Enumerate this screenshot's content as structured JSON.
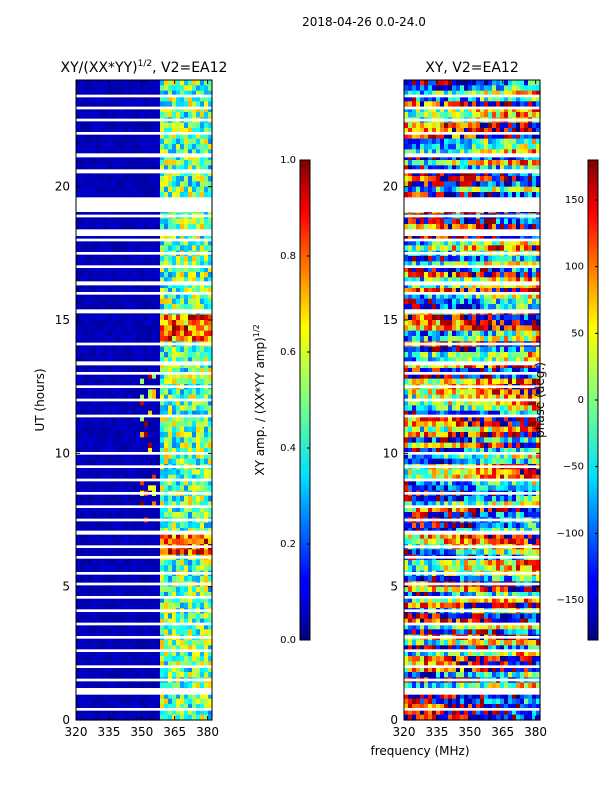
{
  "suptitle": "2018-04-26 0.0-24.0",
  "shared_xlabel": "frequency (MHz)",
  "chart_data": [
    {
      "type": "heatmap",
      "title": "XY/(XX*YY)^(1/2), V2=EA12",
      "title_main": "XY/(XX*YY)",
      "title_sup": "1/2",
      "title_tail": ", V2=EA12",
      "xlabel": "frequency (MHz)",
      "ylabel": "UT (hours)",
      "x_ticks": [
        320,
        335,
        350,
        365,
        380
      ],
      "xlim": [
        320,
        382
      ],
      "y_ticks": [
        0,
        5,
        10,
        15,
        20
      ],
      "ylim": [
        0,
        24
      ],
      "colorbar": {
        "label_main": "XY amp. / (XX*YY amp)",
        "label_sup": "1/2",
        "ticks": [
          0.0,
          0.2,
          0.4,
          0.6,
          0.8,
          1.0
        ],
        "tick_labels": [
          "0.0",
          "0.2",
          "0.4",
          "0.6",
          "0.8",
          "1.0"
        ],
        "range": [
          0,
          1
        ],
        "colormap": "jet"
      }
    },
    {
      "type": "heatmap",
      "title": "XY, V2=EA12",
      "xlabel": "frequency (MHz)",
      "ylabel": "",
      "x_ticks": [
        320,
        335,
        350,
        365,
        380
      ],
      "xlim": [
        320,
        382
      ],
      "y_ticks": [
        0,
        5,
        10,
        15,
        20
      ],
      "ylim": [
        0,
        24
      ],
      "colorbar": {
        "label": "phase (deg.)",
        "ticks": [
          -150,
          -100,
          -50,
          0,
          50,
          100,
          150
        ],
        "tick_labels": [
          "−150",
          "−100",
          "−50",
          "0",
          "50",
          "100",
          "150"
        ],
        "range": [
          -180,
          180
        ],
        "colormap": "jet"
      }
    }
  ],
  "data_gaps_hours": [
    [
      0.35,
      0.45
    ],
    [
      0.95,
      1.2
    ],
    [
      1.45,
      1.55
    ],
    [
      1.95,
      2.05
    ],
    [
      2.55,
      2.65
    ],
    [
      3.05,
      3.15
    ],
    [
      3.55,
      3.65
    ],
    [
      4.05,
      4.15
    ],
    [
      4.55,
      4.65
    ],
    [
      5.05,
      5.15
    ],
    [
      5.45,
      5.55
    ],
    [
      6.05,
      6.15
    ],
    [
      6.45,
      6.55
    ],
    [
      6.95,
      7.1
    ],
    [
      7.45,
      7.55
    ],
    [
      7.95,
      8.05
    ],
    [
      8.45,
      8.55
    ],
    [
      8.95,
      9.05
    ],
    [
      9.45,
      9.55
    ],
    [
      9.95,
      10.05
    ],
    [
      11.35,
      11.45
    ],
    [
      11.95,
      12.05
    ],
    [
      12.45,
      12.55
    ],
    [
      12.95,
      13.05
    ],
    [
      13.3,
      13.45
    ],
    [
      14.05,
      14.15
    ],
    [
      15.25,
      15.4
    ],
    [
      15.95,
      16.05
    ],
    [
      16.3,
      16.45
    ],
    [
      16.95,
      17.05
    ],
    [
      17.45,
      17.55
    ],
    [
      17.95,
      18.05
    ],
    [
      18.15,
      18.4
    ],
    [
      18.85,
      18.95
    ],
    [
      19.05,
      19.6
    ],
    [
      20.5,
      20.65
    ],
    [
      21.1,
      21.25
    ],
    [
      21.95,
      22.05
    ],
    [
      22.45,
      22.55
    ],
    [
      22.9,
      23.0
    ],
    [
      23.35,
      23.45
    ]
  ]
}
